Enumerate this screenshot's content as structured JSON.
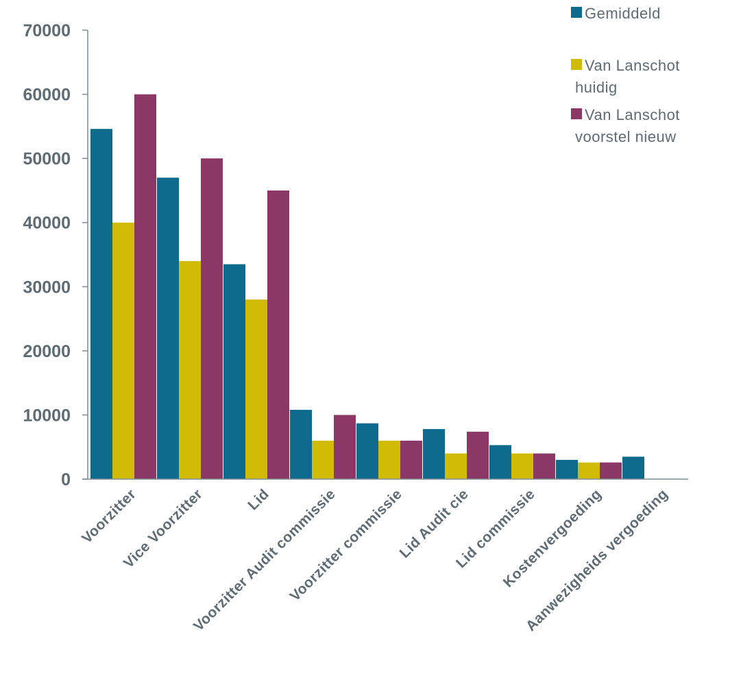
{
  "chart_data": {
    "type": "bar",
    "title": "",
    "xlabel": "",
    "ylabel": "",
    "ylim": [
      0,
      70000
    ],
    "yticks": [
      0,
      10000,
      20000,
      30000,
      40000,
      50000,
      60000,
      70000
    ],
    "grid": false,
    "legend_position": "top-right",
    "categories": [
      "Voorzitter",
      "Vice Voorzitter",
      "Lid",
      "Voorzitter Audit commissie",
      "Voorzitter commissie",
      "Lid Audit cie",
      "Lid commissie",
      "Kostenvergoeding",
      "Aanwezigheids vergoeding"
    ],
    "series": [
      {
        "name": "Gemiddeld",
        "color": "#0e6b8e",
        "values": [
          54600,
          47000,
          33500,
          10800,
          8700,
          7800,
          5300,
          3000,
          3500
        ]
      },
      {
        "name": "Van Lanschot huidig",
        "color": "#d1bb06",
        "values": [
          40000,
          34000,
          28000,
          6000,
          6000,
          4000,
          4000,
          2600,
          null
        ]
      },
      {
        "name": "Van Lanschot voorstel nieuw",
        "color": "#8b3866",
        "values": [
          60000,
          50000,
          45000,
          10000,
          6000,
          7400,
          4000,
          2600,
          null
        ]
      }
    ],
    "legend_lines": [
      [
        "Gemiddeld"
      ],
      [
        "Van Lanschot",
        "huidig"
      ],
      [
        "Van Lanschot",
        "voorstel nieuw"
      ]
    ]
  }
}
